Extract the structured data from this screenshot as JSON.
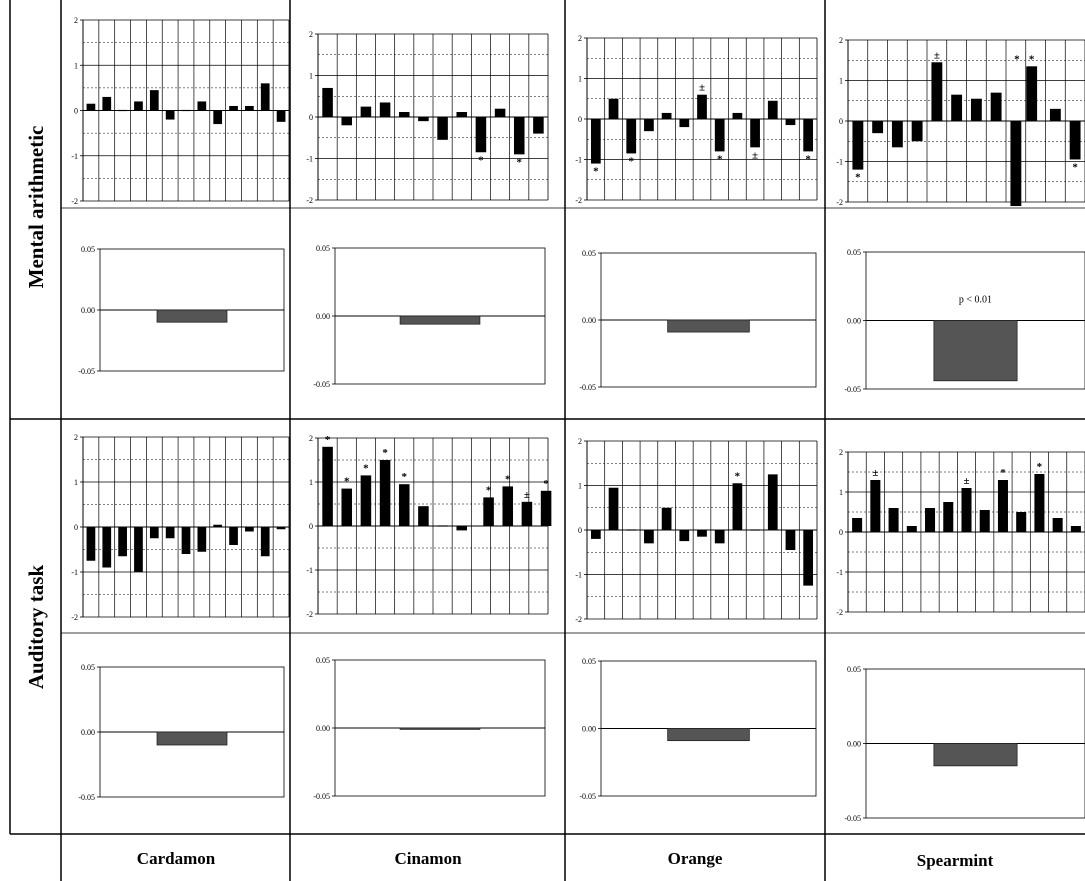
{
  "rows": [
    {
      "label": "Mental arithmetic"
    },
    {
      "label": "Auditory task"
    }
  ],
  "columns": [
    {
      "label": "Cardamon"
    },
    {
      "label": "Cinamon"
    },
    {
      "label": "Orange"
    },
    {
      "label": "Spearmint"
    }
  ],
  "colors": {
    "bar_top": "#000000",
    "bar_bottom": "#3a3a3a",
    "grid": "#000000"
  },
  "chart_data": [
    {
      "type": "bar",
      "panel": "Mental arithmetic / Cardamon / individual",
      "ylim": [
        -2,
        2
      ],
      "yticks": [
        "-2",
        "-1",
        "0",
        "1",
        "2"
      ],
      "grid": true,
      "values": [
        0.15,
        0.3,
        0,
        0.2,
        0.45,
        -0.2,
        0,
        0.2,
        -0.3,
        0.1,
        0.1,
        0.6,
        -0.25
      ],
      "marks": [
        "",
        "",
        "",
        "",
        "",
        "",
        "",
        "",
        "",
        "",
        "",
        "",
        ""
      ]
    },
    {
      "type": "bar",
      "panel": "Mental arithmetic / Cinamon / individual",
      "ylim": [
        -2,
        2
      ],
      "yticks": [
        "-2",
        "-1",
        "0",
        "1",
        "2"
      ],
      "grid": true,
      "values": [
        0.7,
        -0.2,
        0.25,
        0.35,
        0.12,
        -0.1,
        -0.55,
        0.12,
        -0.85,
        0.2,
        -0.9,
        -0.4
      ],
      "marks": [
        "",
        "",
        "",
        "",
        "",
        "",
        "",
        "",
        "*",
        "",
        "*",
        ""
      ]
    },
    {
      "type": "bar",
      "panel": "Mental arithmetic / Orange / individual",
      "ylim": [
        -2,
        2
      ],
      "yticks": [
        "-2",
        "-1",
        "0",
        "1",
        "2"
      ],
      "grid": true,
      "values": [
        -1.1,
        0.5,
        -0.85,
        -0.3,
        0.15,
        -0.2,
        0.6,
        -0.8,
        0.15,
        -0.7,
        0.45,
        -0.15,
        -0.8
      ],
      "marks": [
        "*",
        "",
        "*",
        "",
        "",
        "",
        "±",
        "*",
        "",
        "±",
        "",
        "",
        "*"
      ]
    },
    {
      "type": "bar",
      "panel": "Mental arithmetic / Spearmint / individual",
      "ylim": [
        -2,
        2
      ],
      "yticks": [
        "-2",
        "-1",
        "0",
        "1",
        "2"
      ],
      "grid": true,
      "values": [
        -1.2,
        -0.3,
        -0.65,
        -0.5,
        1.45,
        0.65,
        0.55,
        0.7,
        -2.1,
        1.35,
        0.3,
        -0.95
      ],
      "marks": [
        "*",
        "",
        "",
        "",
        "±",
        "",
        "",
        "",
        "",
        "*",
        "",
        "*"
      ],
      "bar_positions": [
        0,
        1,
        2,
        3,
        4,
        5,
        6,
        7,
        8,
        8.8,
        10,
        11
      ],
      "extra_marks": [
        {
          "x": 8.05,
          "v": 1.35,
          "label": "*"
        }
      ]
    },
    {
      "type": "bar",
      "panel": "Mental arithmetic / Cardamon / mean",
      "ylim": [
        -0.05,
        0.05
      ],
      "yticks": [
        "-0.05",
        "0.00",
        "0.05"
      ],
      "values": [
        -0.01
      ]
    },
    {
      "type": "bar",
      "panel": "Mental arithmetic / Cinamon / mean",
      "ylim": [
        -0.05,
        0.05
      ],
      "yticks": [
        "-0.05",
        "0.00",
        "0.05"
      ],
      "values": [
        -0.006
      ]
    },
    {
      "type": "bar",
      "panel": "Mental arithmetic / Orange / mean",
      "ylim": [
        -0.05,
        0.05
      ],
      "yticks": [
        "-0.05",
        "0.00",
        "0.05"
      ],
      "values": [
        -0.009
      ]
    },
    {
      "type": "bar",
      "panel": "Mental arithmetic / Spearmint / mean",
      "ylim": [
        -0.05,
        0.05
      ],
      "yticks": [
        "-0.05",
        "0.00",
        "0.05"
      ],
      "values": [
        -0.044
      ],
      "annotation": "p < 0.01"
    },
    {
      "type": "bar",
      "panel": "Auditory task / Cardamon / individual",
      "ylim": [
        -2,
        2
      ],
      "yticks": [
        "-2",
        "-1",
        "0",
        "1",
        "2"
      ],
      "grid": true,
      "values": [
        -0.75,
        -0.9,
        -0.65,
        -1.0,
        -0.25,
        -0.25,
        -0.6,
        -0.55,
        0.05,
        -0.4,
        -0.1,
        -0.65,
        -0.05
      ],
      "marks": [
        "",
        "",
        "",
        "",
        "",
        "",
        "",
        "",
        "",
        "",
        "",
        "",
        ""
      ]
    },
    {
      "type": "bar",
      "panel": "Auditory task / Cinamon / individual",
      "ylim": [
        -2,
        2
      ],
      "yticks": [
        "-2",
        "-1",
        "0",
        "1",
        "2"
      ],
      "grid": true,
      "values": [
        1.8,
        0.85,
        1.15,
        1.5,
        0.95,
        0.45,
        0,
        -0.1,
        0.65,
        0.9,
        0.55,
        0.8
      ],
      "marks": [
        "*",
        "*",
        "*",
        "*",
        "*",
        "",
        "",
        "",
        "*",
        "*",
        "±",
        "*"
      ],
      "bar_positions": [
        0,
        1,
        2,
        3,
        4,
        5,
        6,
        7,
        8.4,
        9.4,
        10.4,
        11.4
      ]
    },
    {
      "type": "bar",
      "panel": "Auditory task / Orange / individual",
      "ylim": [
        -2,
        2
      ],
      "yticks": [
        "-2",
        "-1",
        "0",
        "1",
        "2"
      ],
      "grid": true,
      "values": [
        -0.2,
        0.95,
        0,
        -0.3,
        0.5,
        -0.25,
        -0.15,
        -0.3,
        1.05,
        0,
        1.25,
        -0.45,
        -1.25
      ],
      "marks": [
        "",
        "",
        "",
        "",
        "",
        "",
        "",
        "",
        "*",
        "",
        "",
        "",
        ""
      ]
    },
    {
      "type": "bar",
      "panel": "Auditory task / Spearmint / individual",
      "ylim": [
        -2,
        2
      ],
      "yticks": [
        "-2",
        "-1",
        "0",
        "1",
        "2"
      ],
      "grid": true,
      "values": [
        0.35,
        1.3,
        0.6,
        0.15,
        0.6,
        0.75,
        1.1,
        0.55,
        1.3,
        0.5,
        1.45,
        0.35,
        0.15
      ],
      "marks": [
        "",
        "±",
        "",
        "",
        "",
        "",
        "±",
        "",
        "*",
        "",
        "*",
        "",
        ""
      ]
    },
    {
      "type": "bar",
      "panel": "Auditory task / Cardamon / mean",
      "ylim": [
        -0.05,
        0.05
      ],
      "yticks": [
        "-0.05",
        "0.00",
        "0.05"
      ],
      "values": [
        -0.01
      ]
    },
    {
      "type": "bar",
      "panel": "Auditory task / Cinamon / mean",
      "ylim": [
        -0.05,
        0.05
      ],
      "yticks": [
        "-0.05",
        "0.00",
        "0.05"
      ],
      "values": [
        -0.001
      ]
    },
    {
      "type": "bar",
      "panel": "Auditory task / Orange / mean",
      "ylim": [
        -0.05,
        0.05
      ],
      "yticks": [
        "-0.05",
        "0.00",
        "0.05"
      ],
      "values": [
        -0.009
      ]
    },
    {
      "type": "bar",
      "panel": "Auditory task / Spearmint / mean",
      "ylim": [
        -0.05,
        0.05
      ],
      "yticks": [
        "-0.05",
        "0.00",
        "0.05"
      ],
      "values": [
        -0.015
      ]
    }
  ]
}
